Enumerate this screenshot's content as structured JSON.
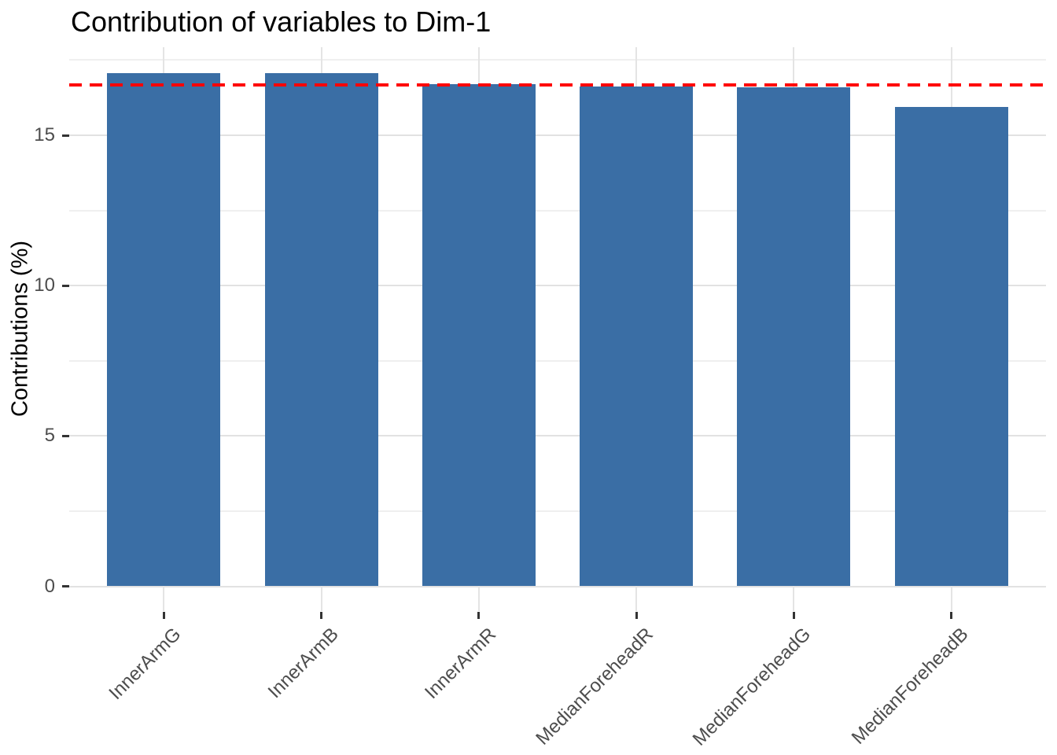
{
  "chart_data": {
    "type": "bar",
    "title": "Contribution of variables to Dim-1",
    "xlabel": "",
    "ylabel": "Contributions (%)",
    "categories": [
      "InnerArmG",
      "InnerArmB",
      "InnerArmR",
      "MedianForeheadR",
      "MedianForeheadG",
      "MedianForeheadB"
    ],
    "values": [
      17.07,
      17.06,
      16.7,
      16.62,
      16.6,
      15.95
    ],
    "yticks": [
      0,
      5,
      10,
      15
    ],
    "ytick_labels": [
      "0",
      "5",
      "10",
      "15"
    ],
    "yticks_minor": [
      2.5,
      7.5,
      12.5,
      17.5
    ],
    "ylim": [
      0,
      17.93
    ],
    "x_label_rotation_deg": 45,
    "grid": true,
    "legend_position": "none",
    "bar_color": "#3a6ea5",
    "reference_line": {
      "value": 16.67,
      "linetype": "dashed",
      "color": "#ff0000"
    }
  },
  "colors": {
    "background": "#ffffff",
    "grid_major": "#e2e2e2",
    "grid_minor": "#efefef",
    "tick_mark": "#333333",
    "tick_text": "#4d4d4d",
    "title_text": "#000000"
  }
}
